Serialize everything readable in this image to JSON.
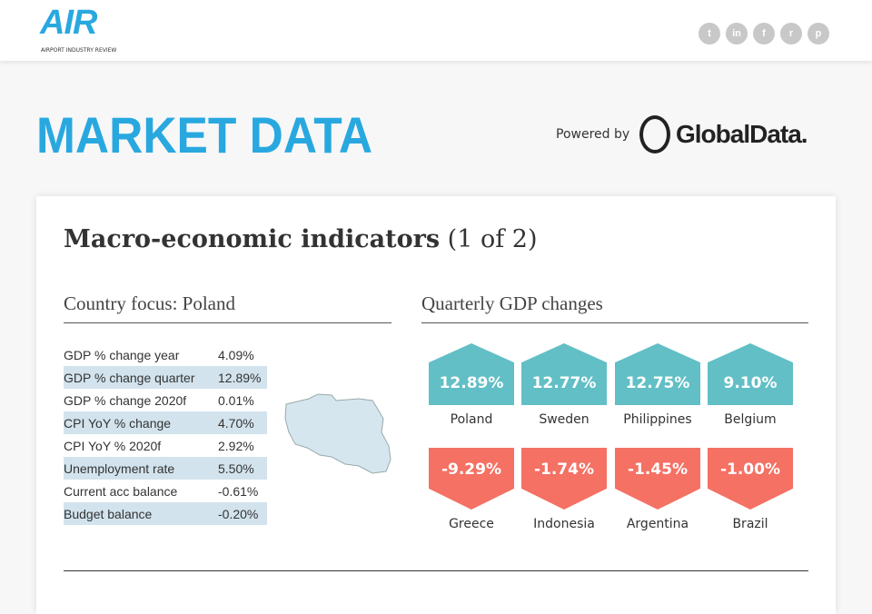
{
  "header": {
    "logo_text": "AIR",
    "logo_subtitle": "AIRPORT INDUSTRY REVIEW",
    "social": [
      {
        "icon": "twitter-icon",
        "glyph": "t"
      },
      {
        "icon": "linkedin-icon",
        "glyph": "in"
      },
      {
        "icon": "facebook-icon",
        "glyph": "f"
      },
      {
        "icon": "reddit-icon",
        "glyph": "r"
      },
      {
        "icon": "pinterest-icon",
        "glyph": "p"
      }
    ]
  },
  "page": {
    "title": "MARKET DATA",
    "powered_by": "Powered by",
    "partner": "GlobalData."
  },
  "card": {
    "title": "Macro-economic indicators",
    "count": "(1 of 2)",
    "country_heading": "Country focus: Poland",
    "gdp_heading": "Quarterly GDP changes",
    "indicators": [
      {
        "label": "GDP % change year",
        "value": "4.09%"
      },
      {
        "label": "GDP % change quarter",
        "value": "12.89%"
      },
      {
        "label": "GDP % change 2020f",
        "value": "0.01%"
      },
      {
        "label": "CPI YoY % change",
        "value": "4.70%"
      },
      {
        "label": "CPI YoY % 2020f",
        "value": "2.92%"
      },
      {
        "label": "Unemployment rate",
        "value": "5.50%"
      },
      {
        "label": "Current acc balance",
        "value": "-0.61%"
      },
      {
        "label": "Budget balance",
        "value": "-0.20%"
      }
    ],
    "top": [
      {
        "value": "12.89%",
        "country": "Poland"
      },
      {
        "value": "12.77%",
        "country": "Sweden"
      },
      {
        "value": "12.75%",
        "country": "Philippines"
      },
      {
        "value": "9.10%",
        "country": "Belgium"
      }
    ],
    "bottom": [
      {
        "value": "-9.29%",
        "country": "Greece"
      },
      {
        "value": "-1.74%",
        "country": "Indonesia"
      },
      {
        "value": "-1.45%",
        "country": "Argentina"
      },
      {
        "value": "-1.00%",
        "country": "Brazil"
      }
    ],
    "colors": {
      "positive": "#62bfc6",
      "negative": "#f47164",
      "accent": "#29a8e0"
    }
  }
}
